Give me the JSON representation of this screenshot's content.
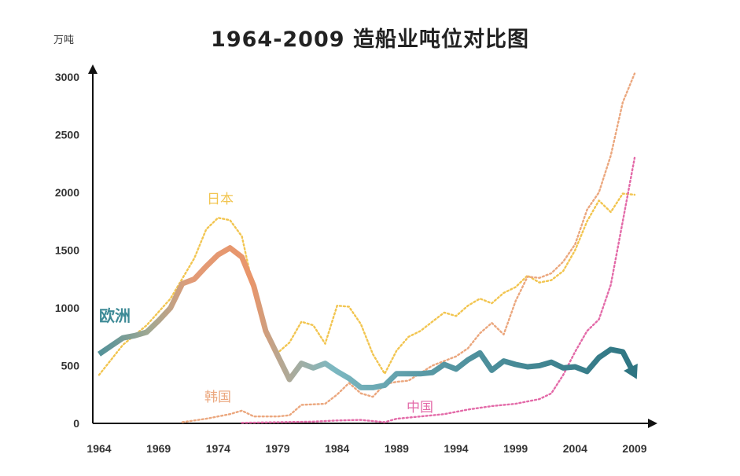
{
  "chart_data": {
    "type": "line",
    "title": "1964-2009  造船业吨位对比图",
    "ylabel": "万吨",
    "xlabel": "",
    "xlim": [
      1964,
      2009
    ],
    "ylim": [
      0,
      3000
    ],
    "x_ticks": [
      "1964",
      "1969",
      "1974",
      "1979",
      "1984",
      "1989",
      "1994",
      "1999",
      "2004",
      "2009"
    ],
    "y_ticks": [
      "0",
      "500",
      "1000",
      "1500",
      "2000",
      "2500",
      "3000"
    ],
    "grid": false,
    "series": [
      {
        "name": "欧洲",
        "style": "solid-thick-gradient",
        "color": "#3d8a96",
        "points": [
          [
            1964,
            600
          ],
          [
            1965,
            670
          ],
          [
            1966,
            740
          ],
          [
            1967,
            760
          ],
          [
            1968,
            790
          ],
          [
            1969,
            890
          ],
          [
            1970,
            1000
          ],
          [
            1971,
            1210
          ],
          [
            1972,
            1250
          ],
          [
            1973,
            1360
          ],
          [
            1974,
            1460
          ],
          [
            1975,
            1520
          ],
          [
            1976,
            1440
          ],
          [
            1977,
            1190
          ],
          [
            1978,
            800
          ],
          [
            1979,
            590
          ],
          [
            1980,
            380
          ],
          [
            1981,
            520
          ],
          [
            1982,
            480
          ],
          [
            1983,
            520
          ],
          [
            1984,
            450
          ],
          [
            1985,
            390
          ],
          [
            1986,
            310
          ],
          [
            1987,
            310
          ],
          [
            1988,
            330
          ],
          [
            1989,
            430
          ],
          [
            1990,
            430
          ],
          [
            1991,
            430
          ],
          [
            1992,
            440
          ],
          [
            1993,
            510
          ],
          [
            1994,
            470
          ],
          [
            1995,
            550
          ],
          [
            1996,
            610
          ],
          [
            1997,
            460
          ],
          [
            1998,
            540
          ],
          [
            1999,
            510
          ],
          [
            2000,
            490
          ],
          [
            2001,
            500
          ],
          [
            2002,
            530
          ],
          [
            2003,
            480
          ],
          [
            2004,
            490
          ],
          [
            2005,
            450
          ],
          [
            2006,
            570
          ],
          [
            2007,
            640
          ],
          [
            2008,
            620
          ],
          [
            2009,
            420
          ]
        ]
      },
      {
        "name": "日本",
        "style": "dotted",
        "color": "#f2c550",
        "points": [
          [
            1964,
            420
          ],
          [
            1966,
            680
          ],
          [
            1968,
            850
          ],
          [
            1970,
            1080
          ],
          [
            1972,
            1430
          ],
          [
            1973,
            1680
          ],
          [
            1974,
            1780
          ],
          [
            1975,
            1760
          ],
          [
            1976,
            1620
          ],
          [
            1977,
            1150
          ],
          [
            1978,
            760
          ],
          [
            1979,
            610
          ],
          [
            1980,
            700
          ],
          [
            1981,
            880
          ],
          [
            1982,
            850
          ],
          [
            1983,
            690
          ],
          [
            1984,
            1020
          ],
          [
            1985,
            1010
          ],
          [
            1986,
            860
          ],
          [
            1987,
            600
          ],
          [
            1988,
            430
          ],
          [
            1989,
            630
          ],
          [
            1990,
            750
          ],
          [
            1991,
            800
          ],
          [
            1992,
            880
          ],
          [
            1993,
            960
          ],
          [
            1994,
            930
          ],
          [
            1995,
            1020
          ],
          [
            1996,
            1080
          ],
          [
            1997,
            1040
          ],
          [
            1998,
            1130
          ],
          [
            1999,
            1180
          ],
          [
            2000,
            1280
          ],
          [
            2001,
            1220
          ],
          [
            2002,
            1240
          ],
          [
            2003,
            1320
          ],
          [
            2004,
            1500
          ],
          [
            2005,
            1750
          ],
          [
            2006,
            1930
          ],
          [
            2007,
            1830
          ],
          [
            2008,
            1990
          ],
          [
            2009,
            1980
          ]
        ]
      },
      {
        "name": "韩国",
        "style": "dotted",
        "color": "#eba77e",
        "points": [
          [
            1971,
            10
          ],
          [
            1973,
            40
          ],
          [
            1975,
            80
          ],
          [
            1976,
            110
          ],
          [
            1977,
            60
          ],
          [
            1979,
            60
          ],
          [
            1980,
            70
          ],
          [
            1981,
            160
          ],
          [
            1983,
            170
          ],
          [
            1984,
            250
          ],
          [
            1985,
            350
          ],
          [
            1986,
            260
          ],
          [
            1987,
            230
          ],
          [
            1988,
            340
          ],
          [
            1989,
            360
          ],
          [
            1990,
            370
          ],
          [
            1992,
            500
          ],
          [
            1993,
            540
          ],
          [
            1994,
            580
          ],
          [
            1995,
            650
          ],
          [
            1996,
            780
          ],
          [
            1997,
            870
          ],
          [
            1998,
            770
          ],
          [
            1999,
            1060
          ],
          [
            2000,
            1270
          ],
          [
            2001,
            1260
          ],
          [
            2002,
            1300
          ],
          [
            2003,
            1400
          ],
          [
            2004,
            1550
          ],
          [
            2005,
            1850
          ],
          [
            2006,
            2000
          ],
          [
            2007,
            2320
          ],
          [
            2008,
            2780
          ],
          [
            2009,
            3030
          ]
        ]
      },
      {
        "name": "中国",
        "style": "dotted",
        "color": "#e36aa8",
        "points": [
          [
            1976,
            5
          ],
          [
            1982,
            15
          ],
          [
            1984,
            25
          ],
          [
            1986,
            30
          ],
          [
            1988,
            10
          ],
          [
            1989,
            40
          ],
          [
            1991,
            60
          ],
          [
            1993,
            80
          ],
          [
            1995,
            120
          ],
          [
            1997,
            150
          ],
          [
            1999,
            170
          ],
          [
            2001,
            210
          ],
          [
            2002,
            260
          ],
          [
            2003,
            420
          ],
          [
            2004,
            620
          ],
          [
            2005,
            800
          ],
          [
            2006,
            900
          ],
          [
            2007,
            1200
          ],
          [
            2008,
            1750
          ],
          [
            2009,
            2300
          ]
        ]
      }
    ],
    "annotations": [
      {
        "label": "日本",
        "color": "#f2c550"
      },
      {
        "label": "欧洲",
        "color": "#3d8a96"
      },
      {
        "label": "韩国",
        "color": "#eba77e"
      },
      {
        "label": "中国",
        "color": "#e36aa8"
      }
    ]
  }
}
